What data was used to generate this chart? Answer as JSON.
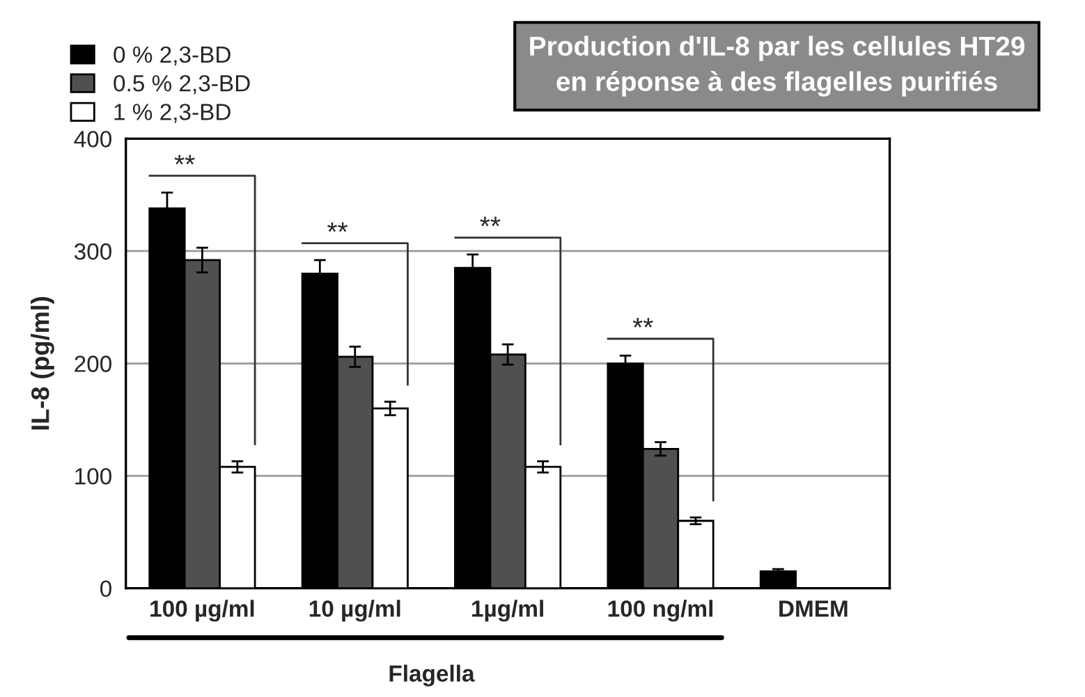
{
  "chart_data": {
    "type": "bar",
    "title": "Production d'IL-8 par les cellules HT29\nen réponse à des flagelles purifiés",
    "categories": [
      "100 µg/ml",
      "10 µg/ml",
      "1µg/ml",
      "100 ng/ml",
      "DMEM"
    ],
    "series": [
      {
        "name": "0 % 2,3-BD",
        "color": "#000000",
        "values": [
          338,
          280,
          285,
          200,
          15
        ],
        "errors": [
          14,
          12,
          12,
          7,
          2
        ]
      },
      {
        "name": "0.5 % 2,3-BD",
        "color": "#505050",
        "values": [
          292,
          206,
          208,
          124,
          null
        ],
        "errors": [
          11,
          9,
          9,
          6,
          null
        ]
      },
      {
        "name": "1 % 2,3-BD",
        "color": "#ffffff",
        "values": [
          108,
          160,
          108,
          60,
          null
        ],
        "errors": [
          5,
          6,
          5,
          3,
          null
        ]
      }
    ],
    "ylabel": "IL-8 (pg/ml)",
    "xlabel": "Flagella",
    "ylim": [
      0,
      400
    ],
    "yticks": [
      0,
      100,
      200,
      300,
      400
    ],
    "grid": "y",
    "legend": "top left",
    "annotations": [
      "**",
      "**",
      "**",
      "**"
    ]
  }
}
